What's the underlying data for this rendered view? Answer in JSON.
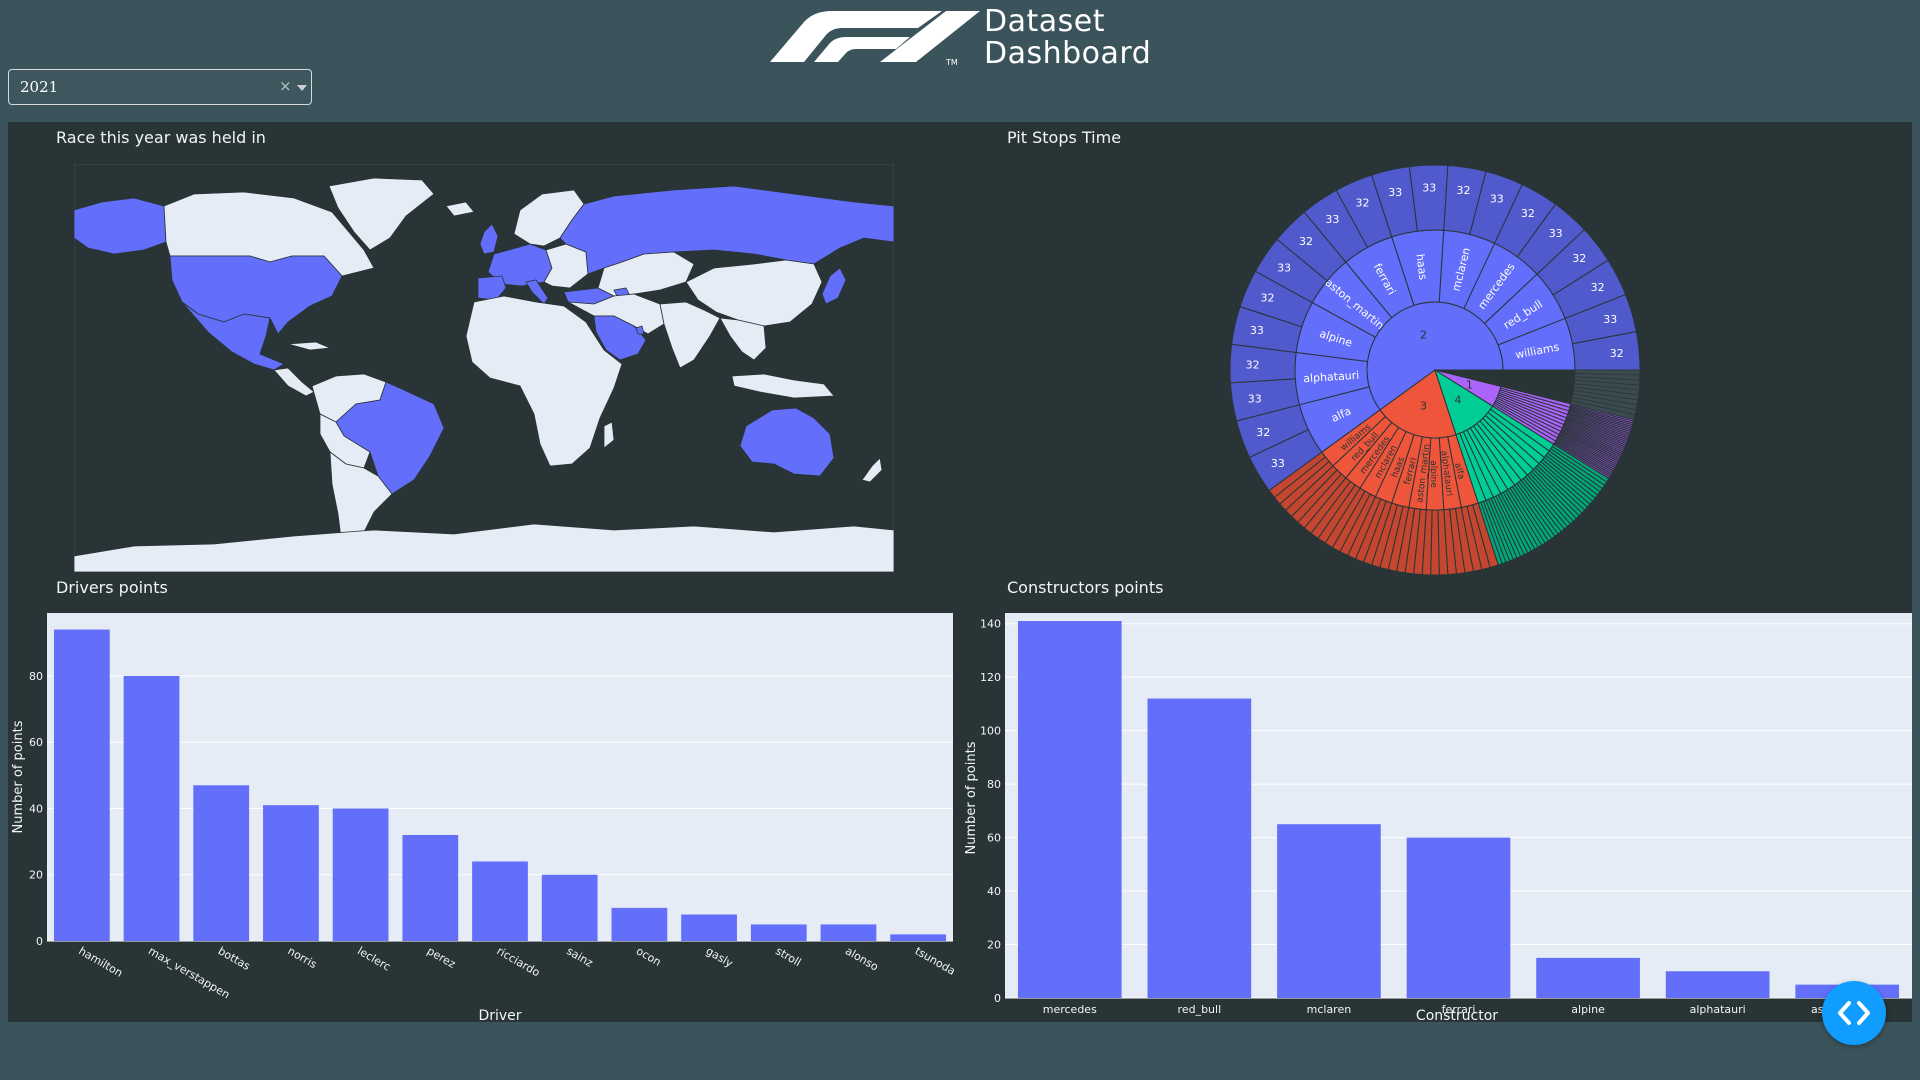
{
  "header": {
    "brand_line1": "Dataset",
    "brand_line2": "Dashboard",
    "tm": "TM"
  },
  "year_select": {
    "value": "2021",
    "clear_glyph": "×"
  },
  "map": {
    "title": "Race this year was held in",
    "highlight_color": "#636efa",
    "land_color": "#e5ecf6",
    "ocean_color": "#283436"
  },
  "pit_stops": {
    "title": "Pit Stops Time"
  },
  "drivers": {
    "title": "Drivers points"
  },
  "constructors": {
    "title": "Constructors points"
  },
  "chart_data": [
    {
      "type": "sunburst",
      "title": "Pit Stops Time",
      "inner": [
        {
          "label": "2",
          "color": "#636efa",
          "share": 0.6
        },
        {
          "label": "3",
          "color": "#ef553b",
          "share": 0.2
        },
        {
          "label": "4",
          "color": "#00cc96",
          "share": 0.11
        },
        {
          "label": "1",
          "color": "#ab63fa",
          "share": 0.05
        }
      ],
      "middle_2": [
        "alfa",
        "alphatauri",
        "alpine",
        "aston_martin",
        "ferrari",
        "haas",
        "mclaren",
        "mercedes",
        "red_bull",
        "williams"
      ],
      "middle_3": [
        "alfa",
        "alphatauri",
        "alpine",
        "aston_martin",
        "ferrari",
        "haas",
        "mclaren",
        "mercedes",
        "red_bull",
        "williams"
      ],
      "outer_2": [
        "33",
        "32",
        "33",
        "32",
        "33",
        "32",
        "33",
        "32",
        "33",
        "32",
        "33",
        "33",
        "32",
        "33",
        "32",
        "33",
        "32",
        "32",
        "33",
        "32"
      ]
    },
    {
      "type": "bar",
      "title": "Drivers points",
      "xlabel": "Driver",
      "ylabel": "Number of points",
      "categories": [
        "hamilton",
        "max_verstappen",
        "bottas",
        "norris",
        "leclerc",
        "perez",
        "ricciardo",
        "sainz",
        "ocon",
        "gasly",
        "stroll",
        "alonso",
        "tsunoda"
      ],
      "values": [
        94,
        80,
        47,
        41,
        40,
        32,
        24,
        20,
        10,
        8,
        5,
        5,
        2
      ],
      "yticks": [
        0,
        20,
        40,
        60,
        80
      ],
      "ylim": [
        0,
        99
      ],
      "grid": true,
      "bar_color": "#636efa"
    },
    {
      "type": "bar",
      "title": "Constructors points",
      "xlabel": "Constructor",
      "ylabel": "Number of points",
      "categories": [
        "mercedes",
        "red_bull",
        "mclaren",
        "ferrari",
        "alpine",
        "alphatauri",
        "aston_martin"
      ],
      "values": [
        141,
        112,
        65,
        60,
        15,
        10,
        5
      ],
      "yticks": [
        0,
        20,
        40,
        60,
        80,
        100,
        120,
        140
      ],
      "ylim": [
        0,
        144
      ],
      "grid": true,
      "bar_color": "#636efa"
    }
  ]
}
